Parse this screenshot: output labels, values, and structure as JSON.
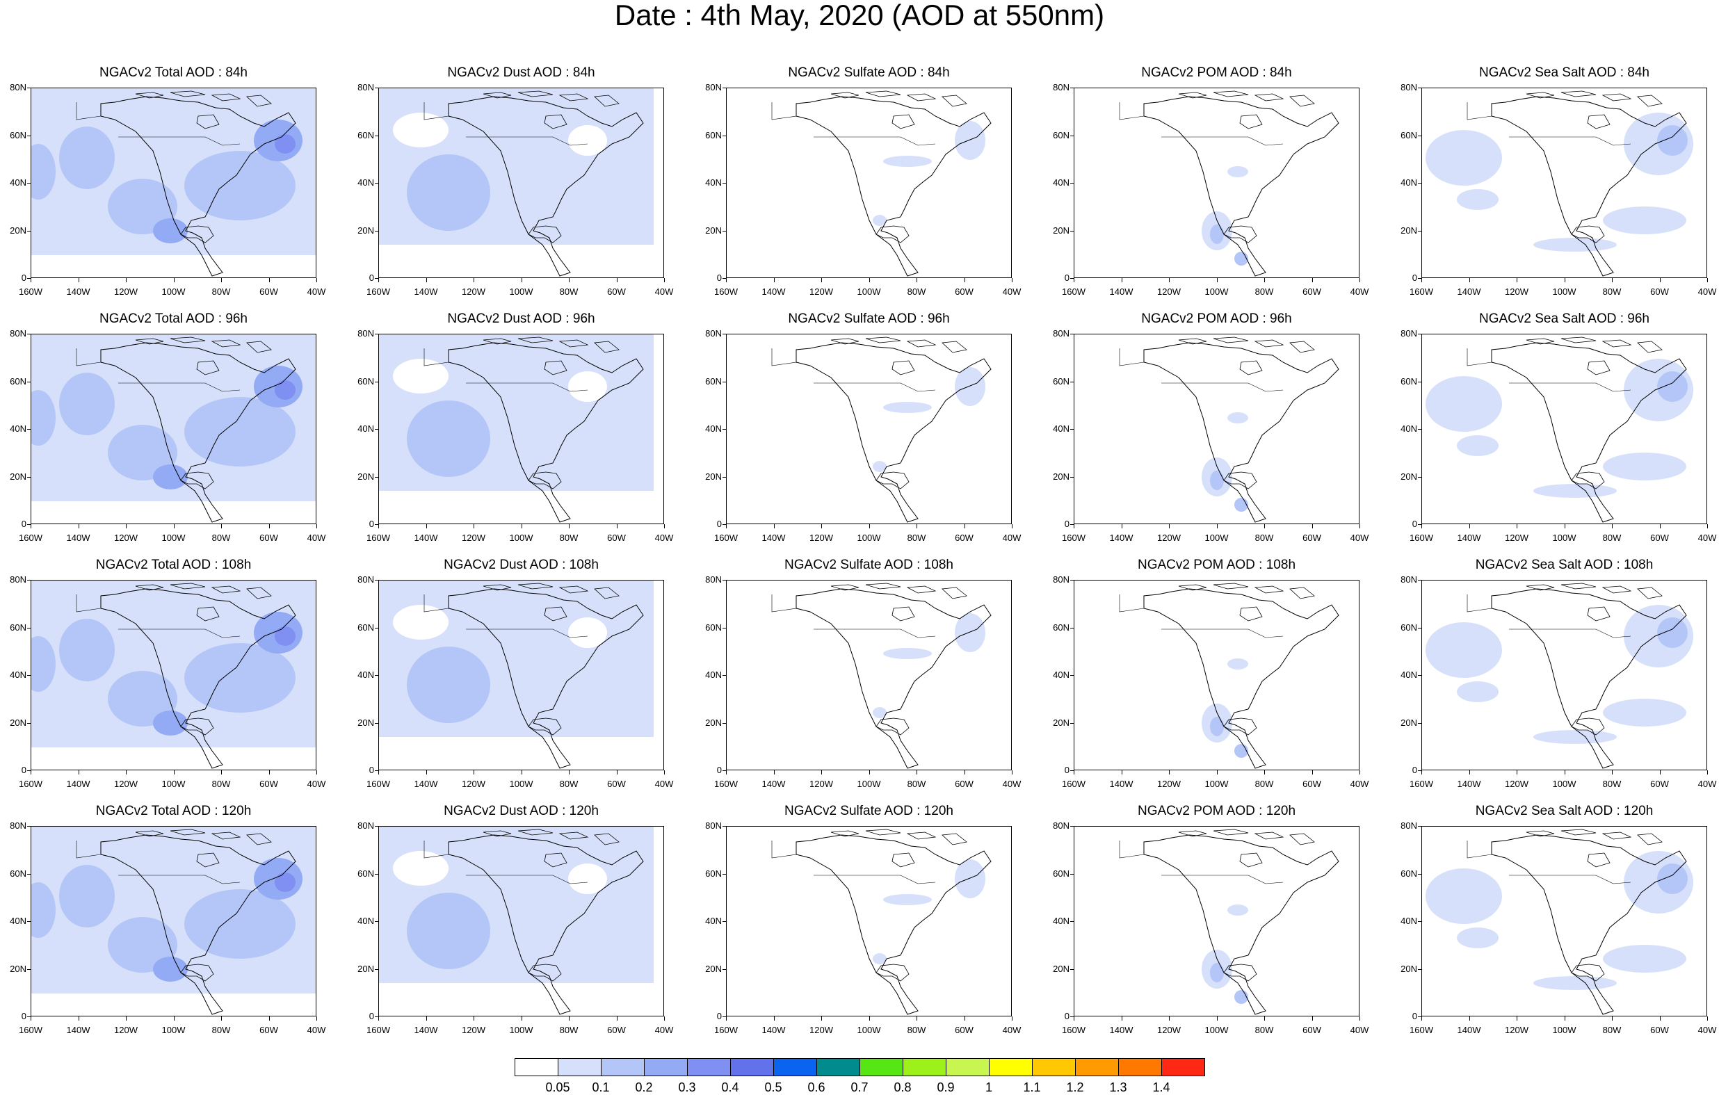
{
  "title": "Date : 4th May, 2020 (AOD at 550nm)",
  "panel_titles": [
    [
      "NGACv2 Total AOD : 84h",
      "NGACv2 Dust AOD : 84h",
      "NGACv2 Sulfate AOD : 84h",
      "NGACv2 POM AOD : 84h",
      "NGACv2 Sea Salt AOD : 84h"
    ],
    [
      "NGACv2 Total AOD : 96h",
      "NGACv2 Dust AOD : 96h",
      "NGACv2 Sulfate AOD : 96h",
      "NGACv2 POM AOD : 96h",
      "NGACv2 Sea Salt AOD : 96h"
    ],
    [
      "NGACv2 Total AOD : 108h",
      "NGACv2 Dust AOD : 108h",
      "NGACv2 Sulfate AOD : 108h",
      "NGACv2 POM AOD : 108h",
      "NGACv2 Sea Salt AOD : 108h"
    ],
    [
      "NGACv2 Total AOD : 120h",
      "NGACv2 Dust AOD : 120h",
      "NGACv2 Sulfate AOD : 120h",
      "NGACv2 POM AOD : 120h",
      "NGACv2 Sea Salt  AOD : 120h"
    ]
  ],
  "lat_labels": [
    "80N",
    "60N",
    "40N",
    "20N",
    "0"
  ],
  "lon_labels": [
    "160W",
    "140W",
    "120W",
    "100W",
    "80W",
    "60W",
    "40W"
  ],
  "colorbar": {
    "colors": [
      "#ffffff",
      "#d6e0fa",
      "#b4c6f7",
      "#93aaf4",
      "#7f8ff2",
      "#6272ea",
      "#0a64f0",
      "#008c8c",
      "#55e614",
      "#9ef01a",
      "#c8f550",
      "#ffff00",
      "#ffc800",
      "#ff9b00",
      "#ff7800",
      "#ff2814"
    ],
    "labels": [
      "0.05",
      "0.1",
      "0.2",
      "0.3",
      "0.4",
      "0.5",
      "0.6",
      "0.7",
      "0.8",
      "0.9",
      "1",
      "1.1",
      "1.2",
      "1.3",
      "1.4"
    ]
  }
}
